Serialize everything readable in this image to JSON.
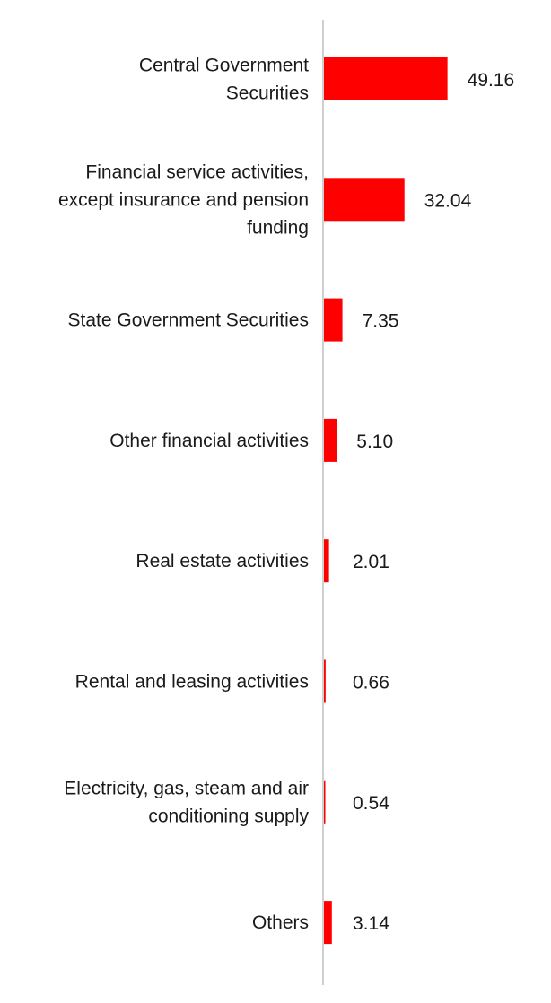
{
  "chart_data": {
    "type": "bar",
    "orientation": "horizontal",
    "categories": [
      [
        "Central Government",
        "Securities"
      ],
      [
        "Financial service activities,",
        "except insurance and pension",
        "funding"
      ],
      [
        "State Government Securities"
      ],
      [
        "Other financial activities"
      ],
      [
        "Real estate activities"
      ],
      [
        "Rental and leasing activities"
      ],
      [
        "Electricity, gas, steam and air",
        "conditioning supply"
      ],
      [
        "Others"
      ]
    ],
    "values": [
      49.16,
      32.04,
      7.35,
      5.1,
      2.01,
      0.66,
      0.54,
      3.14
    ],
    "value_labels": [
      "49.16",
      "32.04",
      "7.35",
      "5.10",
      "2.01",
      "0.66",
      "0.54",
      "3.14"
    ],
    "title": "",
    "xlabel": "",
    "ylabel": "",
    "xlim": [
      0,
      50
    ],
    "grid": false,
    "legend": "none",
    "colors": {
      "bar": "#ff0000",
      "axis": "#d0d0d0",
      "text": "#1a1a1a"
    }
  }
}
